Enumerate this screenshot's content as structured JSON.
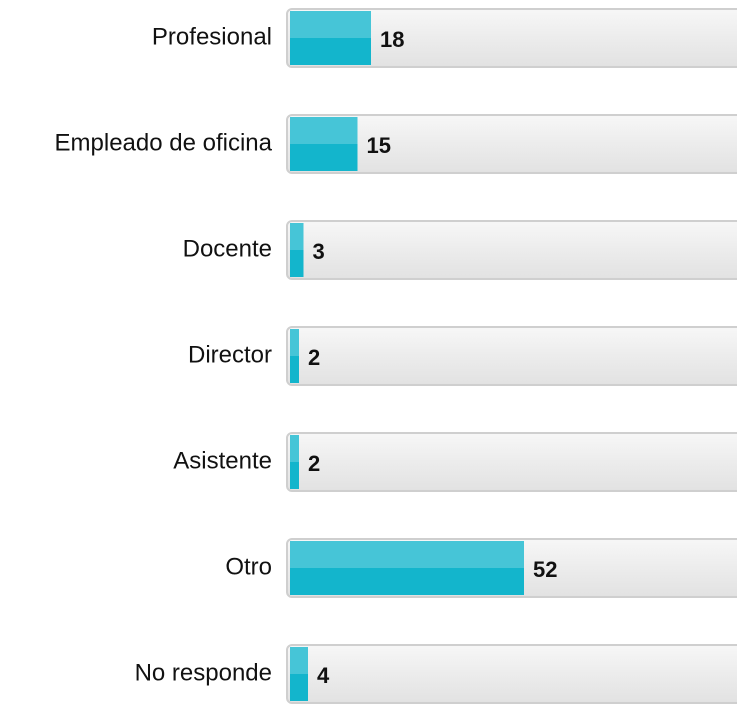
{
  "chart_data": {
    "type": "hbar",
    "categories": [
      "Profesional",
      "Empleado de oficina",
      "Docente",
      "Director",
      "Asistente",
      "Otro",
      "No responde"
    ],
    "values": [
      18,
      15,
      3,
      2,
      2,
      52,
      4
    ],
    "color": "#13b5cc",
    "xlim": [
      0,
      100
    ]
  }
}
